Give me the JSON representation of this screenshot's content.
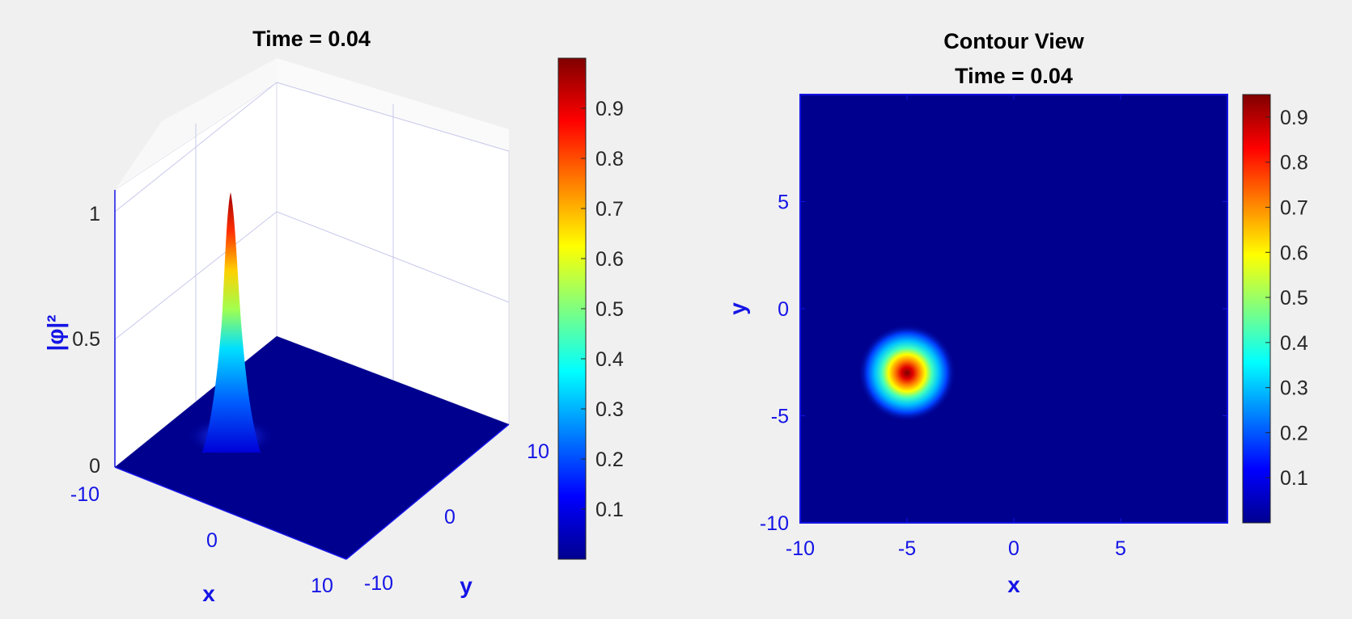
{
  "chart_data": [
    {
      "type": "surface",
      "title": "Time = 0.04",
      "xlabel": "x",
      "ylabel": "y",
      "zlabel": "|φ|²",
      "x_ticks": [
        "-10",
        "0",
        "10"
      ],
      "y_ticks": [
        "-10",
        "0",
        "10"
      ],
      "z_ticks": [
        "0",
        "0.5",
        "1"
      ],
      "zlim": [
        0,
        1.1
      ],
      "colormap": "jet",
      "colorbar": {
        "ticks": [
          "0.1",
          "0.2",
          "0.3",
          "0.4",
          "0.5",
          "0.6",
          "0.7",
          "0.8",
          "0.9"
        ],
        "range": [
          0,
          1.0
        ]
      },
      "peak": {
        "x": -5,
        "y": -3,
        "z": 1.05
      },
      "grid": true
    },
    {
      "type": "heatmap",
      "title": "Contour View",
      "subtitle": "Time = 0.04",
      "xlabel": "x",
      "ylabel": "y",
      "xlim": [
        -10,
        10
      ],
      "ylim": [
        -10,
        10
      ],
      "x_ticks": [
        "-10",
        "-5",
        "0",
        "5"
      ],
      "y_ticks": [
        "-10",
        "-5",
        "0",
        "5"
      ],
      "colormap": "jet",
      "colorbar": {
        "ticks": [
          "0.1",
          "0.2",
          "0.3",
          "0.4",
          "0.5",
          "0.6",
          "0.7",
          "0.8",
          "0.9"
        ],
        "range": [
          0,
          0.95
        ]
      },
      "peak": {
        "x": -5,
        "y": -3,
        "value": 0.95
      },
      "grid": false
    }
  ]
}
